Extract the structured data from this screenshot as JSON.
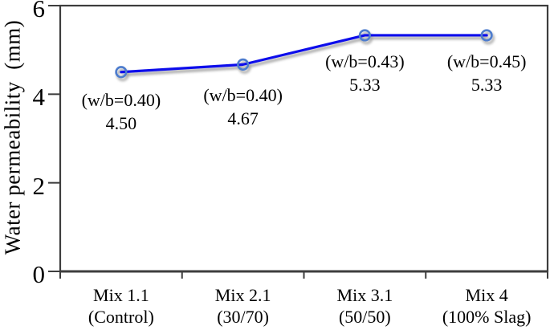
{
  "chart_data": {
    "type": "line",
    "title": "",
    "xlabel": "",
    "ylabel": "Water permeability  (mm)",
    "ylim": [
      0,
      6
    ],
    "yticks": [
      0,
      2,
      4,
      6
    ],
    "grid": false,
    "legend_position": "none",
    "categories": [
      "Mix 1.1 (Control)",
      "Mix 2.1 (30/70)",
      "Mix 3.1 (50/50)",
      "Mix 4 (100% Slag)"
    ],
    "category_lines": [
      [
        "Mix 1.1",
        "(Control)"
      ],
      [
        "Mix 2.1",
        "(30/70)"
      ],
      [
        "Mix 3.1",
        "(50/50)"
      ],
      [
        "Mix 4",
        "(100% Slag)"
      ]
    ],
    "series": [
      {
        "name": "Water permeability",
        "values": [
          4.5,
          4.67,
          5.33,
          5.33
        ]
      }
    ],
    "annotations": [
      {
        "line1": "(w/b=0.40)",
        "line2": "4.50"
      },
      {
        "line1": "(w/b=0.40)",
        "line2": "4.67"
      },
      {
        "line1": "(w/b=0.43)",
        "line2": "5.33"
      },
      {
        "line1": "(w/b=0.45)",
        "line2": "5.33"
      }
    ],
    "colors": {
      "line": "#0d0deb",
      "marker_stroke": "#4d7ccd",
      "axis": "#3d3d3d",
      "text": "#000000",
      "background": "#ffffff"
    }
  }
}
